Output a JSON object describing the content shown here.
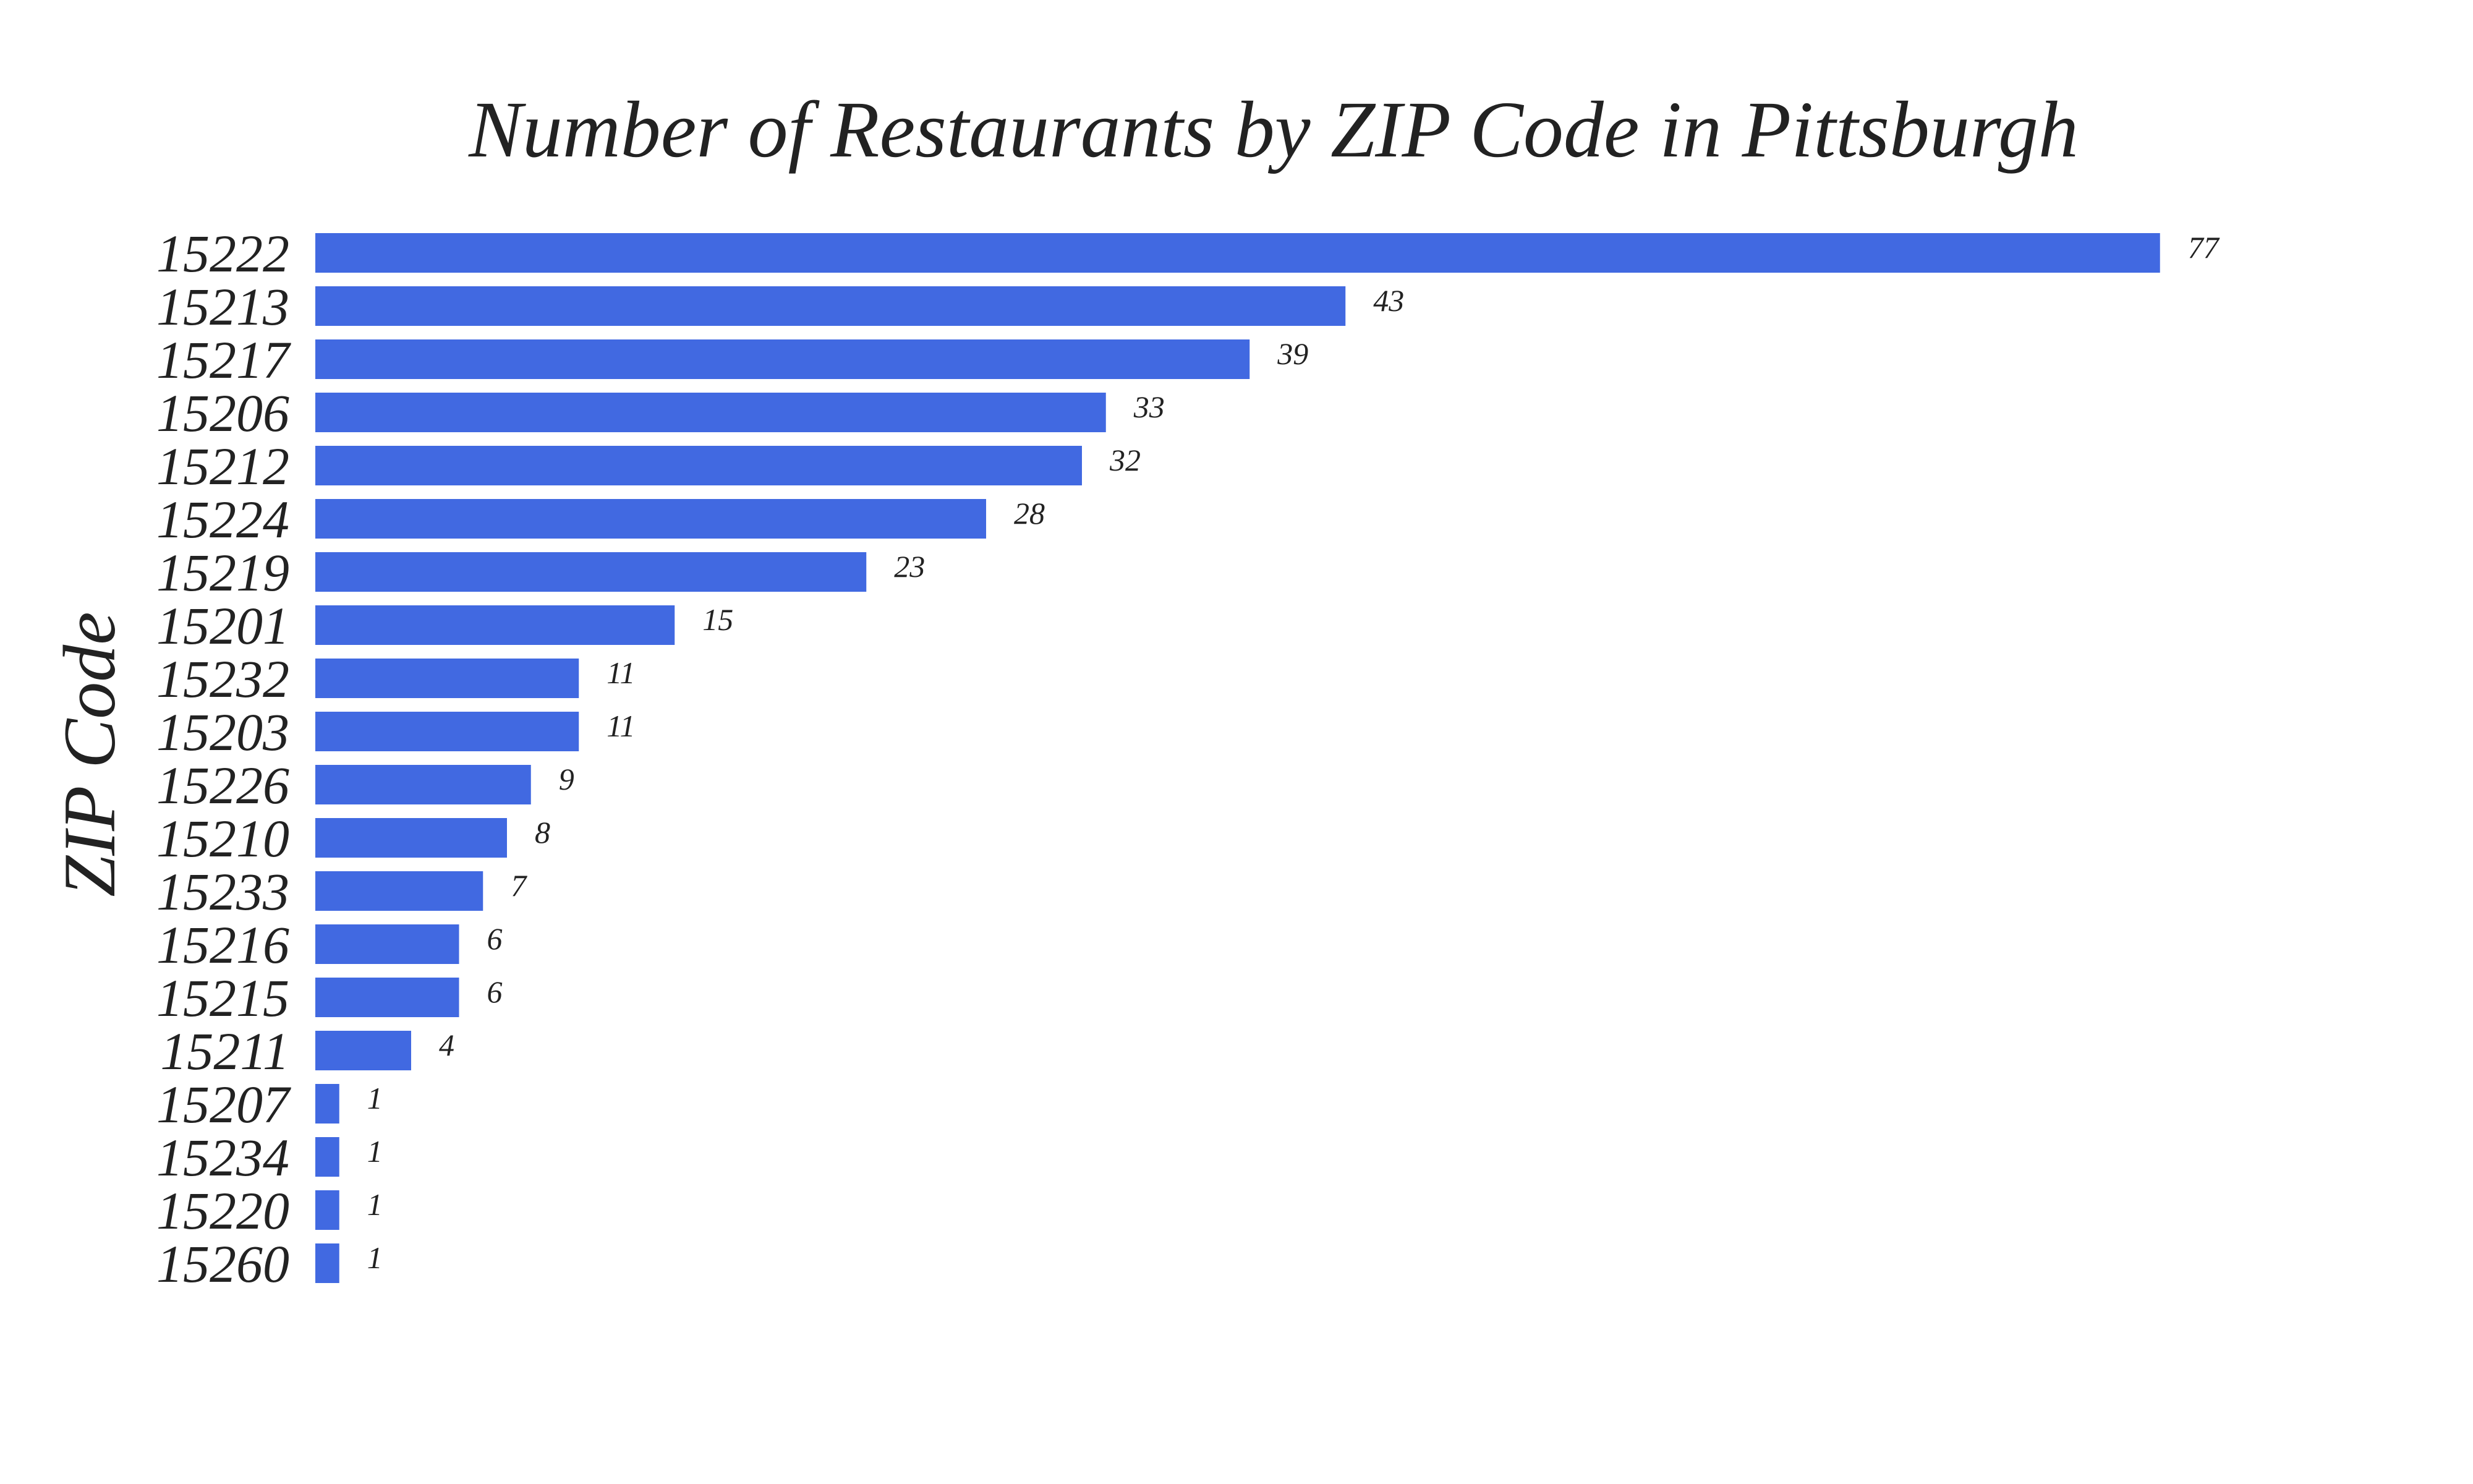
{
  "colors": {
    "bar": "#4169E1",
    "text": "#222222",
    "background": "#ffffff"
  },
  "chart_data": {
    "type": "bar",
    "orientation": "horizontal",
    "title": "Number of Restaurants by ZIP Code in Pittsburgh",
    "xlabel": "",
    "ylabel": "ZIP Code",
    "xlim": [
      0,
      80
    ],
    "grid": false,
    "legend": "none",
    "categories": [
      "15222",
      "15213",
      "15217",
      "15206",
      "15212",
      "15224",
      "15219",
      "15201",
      "15232",
      "15203",
      "15226",
      "15210",
      "15233",
      "15216",
      "15215",
      "15211",
      "15207",
      "15234",
      "15220",
      "15260"
    ],
    "values": [
      77,
      43,
      39,
      33,
      32,
      28,
      23,
      15,
      11,
      11,
      9,
      8,
      7,
      6,
      6,
      4,
      1,
      1,
      1,
      1
    ],
    "data_labels": [
      "77",
      "43",
      "39",
      "33",
      "32",
      "28",
      "23",
      "15",
      "11",
      "11",
      "9",
      "8",
      "7",
      "6",
      "6",
      "4",
      "1",
      "1",
      "1",
      "1"
    ]
  }
}
